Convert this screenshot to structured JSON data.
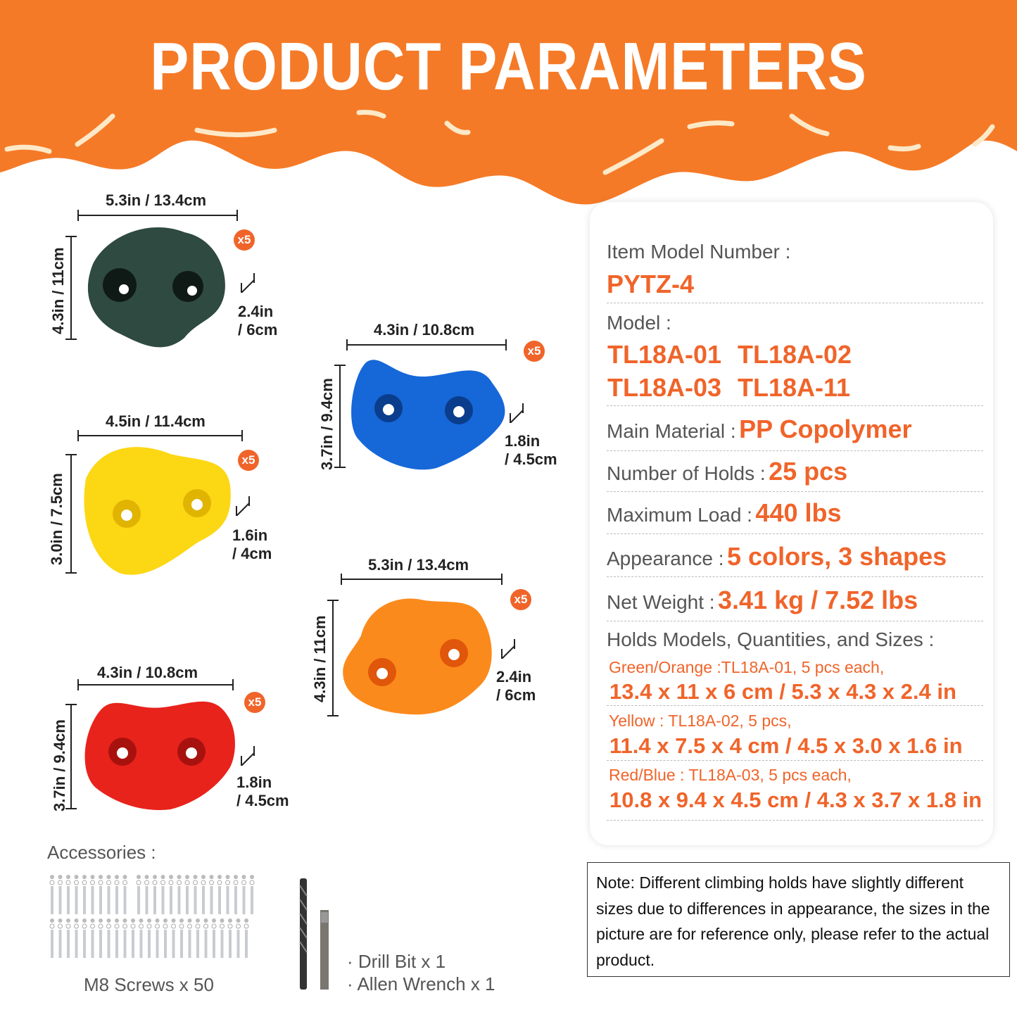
{
  "header": {
    "title": "PRODUCT PARAMETERS",
    "color": "#f57a27"
  },
  "holds": [
    {
      "color": "#2f4a40",
      "width_label": "5.3in / 13.4cm",
      "height_label": "4.3in / 11cm",
      "depth_top": "2.4in",
      "depth_bottom": "/ 6cm",
      "qty": "x5"
    },
    {
      "color": "#fcd714",
      "width_label": "4.5in / 11.4cm",
      "height_label": "3.0in / 7.5cm",
      "depth_top": "1.6in",
      "depth_bottom": "/ 4cm",
      "qty": "x5"
    },
    {
      "color": "#e8231c",
      "width_label": "4.3in / 10.8cm",
      "height_label": "3.7in / 9.4cm",
      "depth_top": "1.8in",
      "depth_bottom": "/ 4.5cm",
      "qty": "x5"
    },
    {
      "color": "#1667d8",
      "width_label": "4.3in / 10.8cm",
      "height_label": "3.7in / 9.4cm",
      "depth_top": "1.8in",
      "depth_bottom": "/ 4.5cm",
      "qty": "x5"
    },
    {
      "color": "#fb8a1c",
      "width_label": "5.3in / 13.4cm",
      "height_label": "4.3in / 11cm",
      "depth_top": "2.4in",
      "depth_bottom": "/ 6cm",
      "qty": "x5"
    }
  ],
  "specs": {
    "item_model_label": "Item Model Number :",
    "item_model_value": "PYTZ-4",
    "model_label": "Model :",
    "models": [
      "TL18A-01",
      "TL18A-02",
      "TL18A-03",
      "TL18A-11"
    ],
    "material_label": "Main Material :",
    "material_value": "PP Copolymer",
    "holds_label": "Number of Holds :",
    "holds_value": "25 pcs",
    "load_label": "Maximum Load :",
    "load_value": "440 lbs",
    "appearance_label": "Appearance :",
    "appearance_value": "5 colors, 3 shapes",
    "weight_label": "Net Weight :",
    "weight_value": "3.41 kg / 7.52 lbs",
    "sizes_label": "Holds Models, Quantities, and Sizes :",
    "sizes": [
      {
        "desc": "Green/Orange :TL18A-01, 5 pcs each,",
        "size": "13.4 x 11 x 6 cm / 5.3 x 4.3 x 2.4 in"
      },
      {
        "desc": "Yellow : TL18A-02, 5 pcs,",
        "size": "11.4 x 7.5 x 4 cm / 4.5 x 3.0 x 1.6 in"
      },
      {
        "desc": "Red/Blue : TL18A-03, 5 pcs each,",
        "size": "10.8 x 9.4 x 4.5 cm / 4.3 x 3.7 x 1.8 in"
      }
    ]
  },
  "note": "Note: Different climbing holds have slightly different sizes due to differences in  appearance, the sizes in the picture are for reference only, please refer to the actual product.",
  "accessories": {
    "label": "Accessories :",
    "screws": "M8 Screws x 50",
    "drill": "· Drill Bit x 1",
    "wrench": "· Allen Wrench x 1"
  }
}
